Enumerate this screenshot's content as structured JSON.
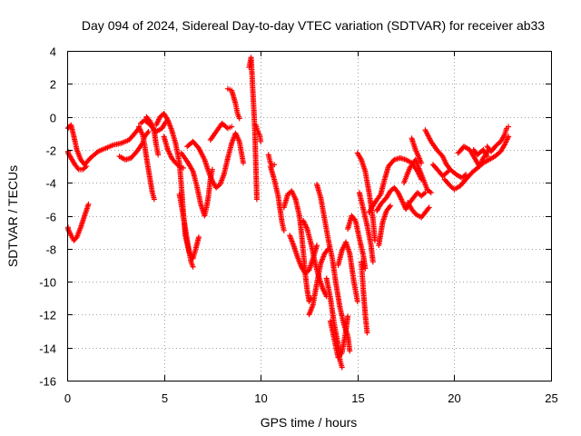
{
  "chart_data": {
    "type": "scatter",
    "title": "Day 094 of 2024, Sidereal Day-to-day VTEC variation (SDTVAR) for receiver ab33",
    "xlabel": "GPS time / hours",
    "ylabel": "SDTVAR / TECUs",
    "xlim": [
      0,
      25
    ],
    "ylim": [
      -16,
      4
    ],
    "xticks": [
      "0",
      "5",
      "10",
      "15",
      "20",
      "25"
    ],
    "yticks": [
      "4",
      "2",
      "0",
      "-2",
      "-4",
      "-6",
      "-8",
      "-10",
      "-12",
      "-14",
      "-16"
    ],
    "grid": true,
    "marker": "+",
    "color": "#ff0000",
    "tracks": [
      [
        [
          0.0,
          -0.7
        ],
        [
          0.2,
          -0.5
        ],
        [
          0.35,
          -1.2
        ],
        [
          0.5,
          -2.0
        ],
        [
          0.7,
          -2.6
        ],
        [
          0.9,
          -2.9
        ],
        [
          1.2,
          -2.5
        ],
        [
          1.6,
          -2.1
        ],
        [
          2.0,
          -1.9
        ],
        [
          2.4,
          -1.7
        ],
        [
          2.8,
          -1.6
        ],
        [
          3.2,
          -1.4
        ],
        [
          3.5,
          -1.0
        ],
        [
          3.7,
          -0.7
        ]
      ],
      [
        [
          0.0,
          -2.1
        ],
        [
          0.2,
          -2.5
        ],
        [
          0.4,
          -2.9
        ],
        [
          0.6,
          -3.2
        ],
        [
          0.8,
          -3.2
        ],
        [
          1.0,
          -3.0
        ]
      ],
      [
        [
          0.0,
          -6.7
        ],
        [
          0.2,
          -7.2
        ],
        [
          0.35,
          -7.5
        ],
        [
          0.5,
          -7.3
        ],
        [
          0.7,
          -6.7
        ],
        [
          0.9,
          -6.0
        ],
        [
          1.1,
          -5.3
        ]
      ],
      [
        [
          2.7,
          -2.4
        ],
        [
          3.0,
          -2.6
        ],
        [
          3.3,
          -2.5
        ],
        [
          3.6,
          -2.1
        ],
        [
          3.9,
          -1.6
        ],
        [
          4.0,
          -1.2
        ],
        [
          4.2,
          -0.9
        ]
      ],
      [
        [
          3.7,
          -0.6
        ],
        [
          3.9,
          -1.1
        ],
        [
          4.0,
          -1.7
        ],
        [
          4.1,
          -2.5
        ],
        [
          4.2,
          -3.2
        ],
        [
          4.3,
          -3.9
        ],
        [
          4.4,
          -4.6
        ],
        [
          4.5,
          -5.0
        ]
      ],
      [
        [
          3.8,
          -0.4
        ],
        [
          4.0,
          -0.2
        ],
        [
          4.3,
          -0.5
        ],
        [
          4.6,
          -0.9
        ],
        [
          4.9,
          -0.7
        ],
        [
          5.1,
          -0.3
        ]
      ],
      [
        [
          4.1,
          0.0
        ],
        [
          4.3,
          -0.3
        ],
        [
          4.5,
          -0.9
        ],
        [
          4.6,
          -1.7
        ],
        [
          4.7,
          -2.3
        ]
      ],
      [
        [
          4.6,
          -0.5
        ],
        [
          4.8,
          0.0
        ],
        [
          5.0,
          0.2
        ],
        [
          5.2,
          -0.2
        ],
        [
          5.4,
          -0.8
        ],
        [
          5.6,
          -1.6
        ],
        [
          5.8,
          -2.8
        ],
        [
          5.9,
          -4.2
        ],
        [
          6.0,
          -5.8
        ],
        [
          6.1,
          -7.2
        ],
        [
          6.3,
          -8.2
        ],
        [
          6.5,
          -8.6
        ],
        [
          6.6,
          -8.2
        ],
        [
          6.8,
          -7.3
        ]
      ],
      [
        [
          5.0,
          -1.2
        ],
        [
          5.2,
          -2.0
        ],
        [
          5.4,
          -2.5
        ],
        [
          5.6,
          -2.8
        ],
        [
          5.8,
          -3.0
        ],
        [
          6.0,
          -3.1
        ]
      ],
      [
        [
          5.8,
          -4.7
        ],
        [
          6.0,
          -6.0
        ],
        [
          6.2,
          -7.5
        ],
        [
          6.4,
          -8.8
        ],
        [
          6.5,
          -9.1
        ]
      ],
      [
        [
          5.9,
          -2.2
        ],
        [
          6.2,
          -2.7
        ],
        [
          6.5,
          -3.3
        ],
        [
          6.7,
          -4.2
        ],
        [
          6.9,
          -5.3
        ],
        [
          7.1,
          -6.0
        ],
        [
          7.2,
          -5.5
        ],
        [
          7.3,
          -4.8
        ],
        [
          7.4,
          -3.8
        ],
        [
          7.5,
          -3.2
        ]
      ],
      [
        [
          6.2,
          -1.8
        ],
        [
          6.5,
          -1.5
        ],
        [
          6.8,
          -1.9
        ],
        [
          7.1,
          -2.6
        ],
        [
          7.3,
          -3.3
        ],
        [
          7.5,
          -3.9
        ],
        [
          7.7,
          -4.3
        ],
        [
          7.9,
          -4.1
        ],
        [
          8.1,
          -3.5
        ],
        [
          8.3,
          -2.5
        ],
        [
          8.5,
          -1.6
        ],
        [
          8.7,
          -1.0
        ],
        [
          8.9,
          -1.5
        ],
        [
          9.1,
          -2.8
        ]
      ],
      [
        [
          7.4,
          -1.4
        ],
        [
          7.7,
          -0.9
        ],
        [
          8.0,
          -0.4
        ],
        [
          8.3,
          -0.7
        ],
        [
          8.5,
          -0.6
        ]
      ],
      [
        [
          8.3,
          1.7
        ],
        [
          8.5,
          1.6
        ],
        [
          8.7,
          0.8
        ],
        [
          8.8,
          0.2
        ],
        [
          8.9,
          -0.1
        ]
      ],
      [
        [
          9.4,
          3.0
        ],
        [
          9.45,
          3.3
        ],
        [
          9.5,
          3.6
        ],
        [
          9.55,
          2.6
        ],
        [
          9.6,
          1.4
        ],
        [
          9.65,
          0.3
        ],
        [
          9.7,
          -1.0
        ],
        [
          9.75,
          -3.0
        ],
        [
          9.8,
          -5.0
        ]
      ],
      [
        [
          9.75,
          -0.5
        ],
        [
          9.85,
          -0.9
        ],
        [
          9.95,
          -1.1
        ],
        [
          10.0,
          -1.5
        ]
      ],
      [
        [
          10.4,
          -2.3
        ],
        [
          10.5,
          -2.8
        ],
        [
          10.6,
          -3.0
        ],
        [
          10.7,
          -2.9
        ]
      ],
      [
        [
          10.5,
          -3.0
        ],
        [
          10.7,
          -3.8
        ],
        [
          10.9,
          -4.8
        ],
        [
          11.0,
          -5.6
        ],
        [
          11.1,
          -6.4
        ],
        [
          11.2,
          -6.9
        ]
      ],
      [
        [
          11.2,
          -5.5
        ],
        [
          11.4,
          -4.7
        ],
        [
          11.6,
          -4.5
        ],
        [
          11.8,
          -5.0
        ],
        [
          12.0,
          -6.0
        ],
        [
          12.1,
          -7.0
        ],
        [
          12.2,
          -8.2
        ],
        [
          12.3,
          -9.5
        ],
        [
          12.4,
          -10.5
        ],
        [
          12.5,
          -11.2
        ],
        [
          12.6,
          -11.0
        ]
      ],
      [
        [
          11.5,
          -7.2
        ],
        [
          11.7,
          -7.8
        ],
        [
          11.9,
          -8.5
        ],
        [
          12.1,
          -9.1
        ],
        [
          12.3,
          -9.5
        ],
        [
          12.5,
          -9.3
        ],
        [
          12.7,
          -8.6
        ],
        [
          12.9,
          -7.8
        ]
      ],
      [
        [
          12.2,
          -6.3
        ],
        [
          12.4,
          -6.8
        ],
        [
          12.6,
          -7.7
        ],
        [
          12.8,
          -8.8
        ],
        [
          13.0,
          -9.7
        ],
        [
          13.2,
          -10.4
        ],
        [
          13.4,
          -10.9
        ]
      ],
      [
        [
          12.5,
          -12.0
        ],
        [
          12.7,
          -11.4
        ],
        [
          12.9,
          -10.1
        ],
        [
          13.1,
          -8.9
        ],
        [
          13.3,
          -8.3
        ],
        [
          13.5,
          -8.0
        ]
      ],
      [
        [
          12.9,
          -4.1
        ],
        [
          13.1,
          -4.9
        ],
        [
          13.3,
          -6.2
        ],
        [
          13.5,
          -7.5
        ],
        [
          13.7,
          -8.6
        ],
        [
          13.9,
          -10.2
        ],
        [
          14.1,
          -11.6
        ],
        [
          14.3,
          -12.6
        ],
        [
          14.5,
          -13.3
        ],
        [
          14.6,
          -14.2
        ]
      ],
      [
        [
          13.4,
          -9.8
        ],
        [
          13.6,
          -11.0
        ],
        [
          13.8,
          -12.6
        ],
        [
          14.0,
          -13.8
        ],
        [
          14.1,
          -14.8
        ],
        [
          14.2,
          -15.2
        ]
      ],
      [
        [
          13.6,
          -12.4
        ],
        [
          13.8,
          -13.5
        ],
        [
          14.0,
          -14.6
        ],
        [
          14.2,
          -14.3
        ],
        [
          14.4,
          -13.0
        ],
        [
          14.5,
          -12.1
        ]
      ],
      [
        [
          14.0,
          -9.0
        ],
        [
          14.2,
          -8.1
        ],
        [
          14.4,
          -7.6
        ],
        [
          14.6,
          -8.3
        ],
        [
          14.8,
          -9.9
        ],
        [
          15.0,
          -11.2
        ]
      ],
      [
        [
          14.5,
          -6.8
        ],
        [
          14.7,
          -6.0
        ],
        [
          14.9,
          -6.3
        ],
        [
          15.1,
          -7.4
        ],
        [
          15.3,
          -8.4
        ],
        [
          15.4,
          -9.2
        ]
      ],
      [
        [
          15.0,
          -2.2
        ],
        [
          15.2,
          -2.6
        ],
        [
          15.4,
          -3.3
        ],
        [
          15.6,
          -4.6
        ],
        [
          15.8,
          -6.2
        ],
        [
          15.9,
          -7.5
        ]
      ],
      [
        [
          15.1,
          -4.6
        ],
        [
          15.3,
          -5.6
        ],
        [
          15.5,
          -6.6
        ],
        [
          15.7,
          -7.8
        ],
        [
          15.8,
          -8.8
        ]
      ],
      [
        [
          15.2,
          -8.8
        ],
        [
          15.3,
          -10.5
        ],
        [
          15.4,
          -12.0
        ],
        [
          15.5,
          -13.1
        ]
      ],
      [
        [
          15.6,
          -5.8
        ],
        [
          15.9,
          -5.2
        ],
        [
          16.2,
          -4.7
        ],
        [
          16.4,
          -3.8
        ],
        [
          16.6,
          -3.0
        ],
        [
          16.9,
          -2.6
        ],
        [
          17.2,
          -2.5
        ],
        [
          17.5,
          -2.6
        ],
        [
          17.8,
          -2.8
        ],
        [
          18.1,
          -3.3
        ],
        [
          18.3,
          -3.8
        ]
      ],
      [
        [
          16.0,
          -5.7
        ],
        [
          16.2,
          -5.3
        ],
        [
          16.5,
          -4.9
        ],
        [
          16.7,
          -4.5
        ],
        [
          16.9,
          -4.3
        ],
        [
          17.1,
          -4.6
        ],
        [
          17.3,
          -5.1
        ],
        [
          17.5,
          -5.6
        ],
        [
          17.7,
          -5.2
        ],
        [
          17.9,
          -4.9
        ],
        [
          18.1,
          -4.6
        ],
        [
          18.3,
          -4.8
        ],
        [
          18.5,
          -4.6
        ]
      ],
      [
        [
          16.1,
          -7.8
        ],
        [
          16.3,
          -6.4
        ],
        [
          16.5,
          -5.7
        ],
        [
          16.7,
          -5.4
        ]
      ],
      [
        [
          17.4,
          -4.0
        ],
        [
          17.7,
          -3.1
        ],
        [
          18.0,
          -2.6
        ],
        [
          18.3,
          -3.5
        ],
        [
          18.6,
          -4.4
        ],
        [
          18.8,
          -4.6
        ]
      ],
      [
        [
          17.6,
          -5.2
        ],
        [
          17.8,
          -5.6
        ],
        [
          18.0,
          -5.9
        ],
        [
          18.3,
          -6.1
        ],
        [
          18.5,
          -5.8
        ],
        [
          18.7,
          -5.5
        ]
      ],
      [
        [
          17.8,
          -1.3
        ],
        [
          18.0,
          -2.0
        ],
        [
          18.3,
          -2.8
        ]
      ],
      [
        [
          18.5,
          -0.8
        ],
        [
          18.8,
          -1.5
        ],
        [
          19.1,
          -2.0
        ],
        [
          19.4,
          -2.4
        ],
        [
          19.6,
          -2.9
        ],
        [
          19.8,
          -3.2
        ],
        [
          20.1,
          -3.5
        ],
        [
          20.4,
          -3.7
        ],
        [
          20.6,
          -3.5
        ]
      ],
      [
        [
          18.9,
          -2.9
        ],
        [
          19.2,
          -3.3
        ],
        [
          19.4,
          -3.6
        ],
        [
          19.7,
          -3.3
        ]
      ],
      [
        [
          20.2,
          -2.2
        ],
        [
          20.5,
          -1.8
        ],
        [
          20.8,
          -2.0
        ],
        [
          21.1,
          -2.6
        ],
        [
          21.3,
          -3.0
        ],
        [
          21.5,
          -2.5
        ],
        [
          21.8,
          -2.0
        ]
      ],
      [
        [
          19.5,
          -3.8
        ],
        [
          19.8,
          -4.2
        ],
        [
          20.0,
          -4.4
        ],
        [
          20.3,
          -4.2
        ],
        [
          20.6,
          -3.8
        ],
        [
          20.9,
          -3.4
        ],
        [
          21.2,
          -3.1
        ],
        [
          21.5,
          -2.8
        ],
        [
          21.8,
          -2.6
        ],
        [
          22.1,
          -2.4
        ],
        [
          22.4,
          -2.1
        ],
        [
          22.6,
          -1.7
        ],
        [
          22.8,
          -1.2
        ]
      ],
      [
        [
          21.7,
          -1.8
        ],
        [
          21.9,
          -2.1
        ],
        [
          22.2,
          -1.7
        ],
        [
          22.4,
          -1.5
        ],
        [
          22.6,
          -1.1
        ],
        [
          22.7,
          -0.7
        ],
        [
          22.8,
          -0.6
        ]
      ],
      [
        [
          21.0,
          -2.0
        ],
        [
          21.2,
          -2.3
        ],
        [
          21.5,
          -2.0
        ],
        [
          21.7,
          -2.4
        ]
      ]
    ]
  }
}
